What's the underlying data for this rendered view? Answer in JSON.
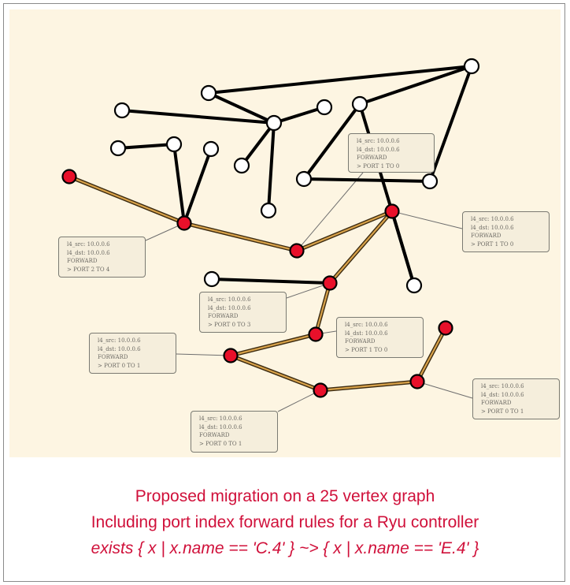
{
  "graph": {
    "colors": {
      "background": "#fdf5e2",
      "edge": "#000000",
      "path_edge_outer": "#3b2a10",
      "path_edge_inner": "#d8a24a",
      "node_fill": "#ffffff",
      "active_node_fill": "#e8102a",
      "rule_link": "#6e6e6e"
    },
    "rules": [
      {
        "src": "l4_src: 10.0.0.6",
        "dst": "l4_dst: 10.0.0.6",
        "action": "FORWARD",
        "port": "> PORT 2 TO 4"
      },
      {
        "src": "l4_src: 10.0.0.6",
        "dst": "l4_dst: 10.0.0.6",
        "action": "FORWARD",
        "port": "> PORT 1 TO 0"
      },
      {
        "src": "l4_src: 10.0.0.6",
        "dst": "l4_dst: 10.0.0.6",
        "action": "FORWARD",
        "port": "> PORT 1 TO 0"
      },
      {
        "src": "l4_src: 10.0.0.6",
        "dst": "l4_dst: 10.0.0.6",
        "action": "FORWARD",
        "port": "> PORT 0 TO 3"
      },
      {
        "src": "l4_src: 10.0.0.6",
        "dst": "l4_dst: 10.0.0.6",
        "action": "FORWARD",
        "port": "> PORT 1 TO 0"
      },
      {
        "src": "l4_src: 10.0.0.6",
        "dst": "l4_dst: 10.0.0.6",
        "action": "FORWARD",
        "port": "> PORT 0 TO 1"
      },
      {
        "src": "l4_src: 10.0.0.6",
        "dst": "l4_dst: 10.0.0.6",
        "action": "FORWARD",
        "port": "> PORT 0 TO 1"
      },
      {
        "src": "l4_src: 10.0.0.6",
        "dst": "l4_dst: 10.0.0.6",
        "action": "FORWARD",
        "port": "> PORT 0 TO 1"
      }
    ]
  },
  "caption": {
    "line1": "Proposed migration on a 25 vertex graph",
    "line2": "Including port index forward rules for a Ryu controller",
    "line3": "exists { x | x.name == 'C.4' } ~> { x | x.name == 'E.4' }"
  }
}
